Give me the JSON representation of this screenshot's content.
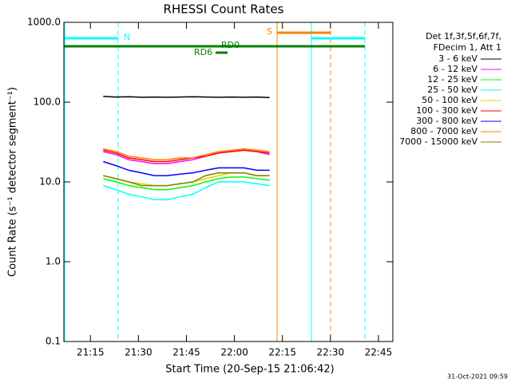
{
  "chart_data": {
    "type": "line",
    "title": "RHESSI Count Rates",
    "xlabel": "Start Time (20-Sep-15 21:06:42)",
    "ylabel": "Count Rate (s⁻¹ detector segment⁻¹)",
    "log_y": true,
    "xlim": [
      66.7,
      169.5
    ],
    "xticks": [
      {
        "value": 75,
        "label": "21:15"
      },
      {
        "value": 90,
        "label": "21:30"
      },
      {
        "value": 105,
        "label": "21:45"
      },
      {
        "value": 120,
        "label": "22:00"
      },
      {
        "value": 135,
        "label": "22:15"
      },
      {
        "value": 150,
        "label": "22:30"
      },
      {
        "value": 165,
        "label": "22:45"
      }
    ],
    "ylim": [
      0.1,
      1000
    ],
    "yticks": [
      {
        "value": 1000,
        "label": "1000.0"
      },
      {
        "value": 100,
        "label": "100.0"
      },
      {
        "value": 10,
        "label": "10.0"
      },
      {
        "value": 1,
        "label": "1.0"
      },
      {
        "value": 0.1,
        "label": "0.1"
      }
    ],
    "x": [
      79,
      83,
      87,
      91,
      95,
      99,
      103,
      107,
      111,
      115,
      119,
      123,
      127,
      131
    ],
    "legend_header": [
      "Det 1f,3f,5f,6f,7f,",
      "FDecim 1, Att 1"
    ],
    "series": [
      {
        "name": "3 - 6 keV",
        "color": "#000000",
        "values": [
          118,
          116,
          117,
          115,
          116,
          115,
          116,
          117,
          116,
          115,
          116,
          115,
          116,
          114
        ]
      },
      {
        "name": "6 - 12 keV",
        "color": "#ff00ff",
        "values": [
          24,
          22,
          19,
          18,
          17,
          17,
          18,
          19,
          21,
          23,
          24,
          25,
          24,
          22
        ]
      },
      {
        "name": "12 - 25 keV",
        "color": "#00ff00",
        "values": [
          11,
          10,
          9,
          8.5,
          8,
          8,
          8.5,
          9,
          10,
          11,
          11.5,
          11.5,
          11,
          10.5
        ]
      },
      {
        "name": "25 - 50 keV",
        "color": "#00ffff",
        "values": [
          9,
          8,
          7,
          6.5,
          6,
          6,
          6.5,
          7,
          8.5,
          10,
          10,
          10,
          9.5,
          9
        ]
      },
      {
        "name": "50 - 100 keV",
        "color": "#e6d200",
        "values": [
          12,
          11,
          10,
          9.5,
          9,
          9,
          9.5,
          10,
          11,
          12,
          13,
          13,
          12,
          12
        ]
      },
      {
        "name": "100 - 300 keV",
        "color": "#ff0000",
        "values": [
          25,
          23,
          20,
          19,
          18,
          18,
          19,
          20,
          21,
          23,
          24,
          25,
          24,
          23
        ]
      },
      {
        "name": "300 - 800 keV",
        "color": "#0000ff",
        "values": [
          18,
          16,
          14,
          13,
          12,
          12,
          12.5,
          13,
          14,
          15,
          15,
          15,
          14,
          14
        ]
      },
      {
        "name": "800 - 7000 keV",
        "color": "#ff8000",
        "values": [
          26,
          24,
          21,
          20,
          19,
          19,
          20,
          20,
          22,
          24,
          25,
          26,
          25,
          24
        ]
      },
      {
        "name": "7000 - 15000 keV",
        "color": "#808000",
        "values": [
          12,
          11,
          10,
          9,
          9,
          9,
          9.5,
          10,
          12,
          13,
          13,
          13,
          12,
          12
        ]
      }
    ],
    "annotations": [
      "N",
      "S",
      "RD0",
      "RD6"
    ],
    "footer": "31-Oct-2021 09:59"
  }
}
